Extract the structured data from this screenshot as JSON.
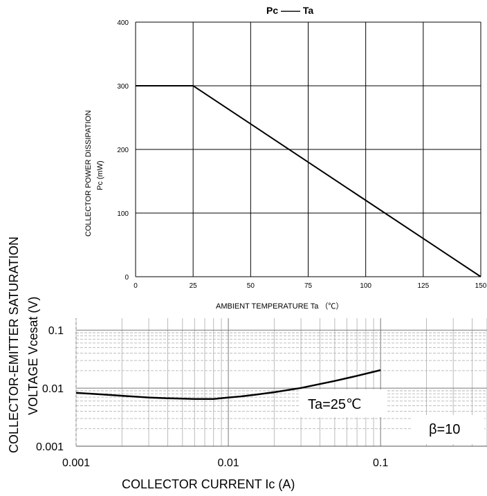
{
  "chart_data": [
    {
      "type": "line",
      "title": "",
      "xlabel": "COLLECTOR CURRENT  Ic (A)",
      "ylabel_line1": "COLLECTOR-EMITTER SATURATION",
      "ylabel_line2": "VOLTAGE    Vcesat (V)",
      "x_scale": "log",
      "y_scale": "log",
      "xlim": [
        0.001,
        0.5
      ],
      "ylim": [
        0.001,
        0.2
      ],
      "x_ticks": [
        0.001,
        0.01,
        0.1
      ],
      "x_tick_labels": [
        "0.001",
        "0.01",
        "0.1"
      ],
      "y_ticks": [
        0.001,
        0.01,
        0.1
      ],
      "y_tick_labels": [
        "0.001",
        "0.01",
        "0.1"
      ],
      "grid": true,
      "annotations": [
        "Ta=25℃",
        "β=10"
      ],
      "series": [
        {
          "x": [
            0.001,
            0.0015,
            0.002,
            0.003,
            0.004,
            0.005,
            0.006,
            0.008,
            0.01,
            0.012,
            0.015,
            0.02,
            0.03,
            0.05,
            0.07,
            0.1
          ],
          "y": [
            0.0083,
            0.0078,
            0.0074,
            0.0069,
            0.0067,
            0.0066,
            0.0065,
            0.0065,
            0.0069,
            0.0072,
            0.0077,
            0.0085,
            0.0101,
            0.0133,
            0.0163,
            0.0205
          ]
        }
      ]
    },
    {
      "type": "line",
      "title": "Pc  ——  Ta",
      "xlabel": "AMBIENT TEMPERATURE    Ta  （℃）",
      "ylabel_line1": "COLLECTOR POWER DISSIPATION",
      "ylabel_line2": "Pc   (mW)",
      "xlim": [
        0,
        150
      ],
      "ylim": [
        0,
        400
      ],
      "x_ticks": [
        0,
        25,
        50,
        75,
        100,
        125,
        150
      ],
      "x_tick_labels": [
        "0",
        "25",
        "50",
        "75",
        "100",
        "125",
        "150"
      ],
      "y_ticks": [
        0,
        100,
        200,
        300,
        400
      ],
      "y_tick_labels": [
        "0",
        "100",
        "200",
        "300",
        "400"
      ],
      "grid": true,
      "series": [
        {
          "x": [
            0,
            25,
            150
          ],
          "y": [
            300,
            300,
            0
          ]
        }
      ]
    }
  ]
}
